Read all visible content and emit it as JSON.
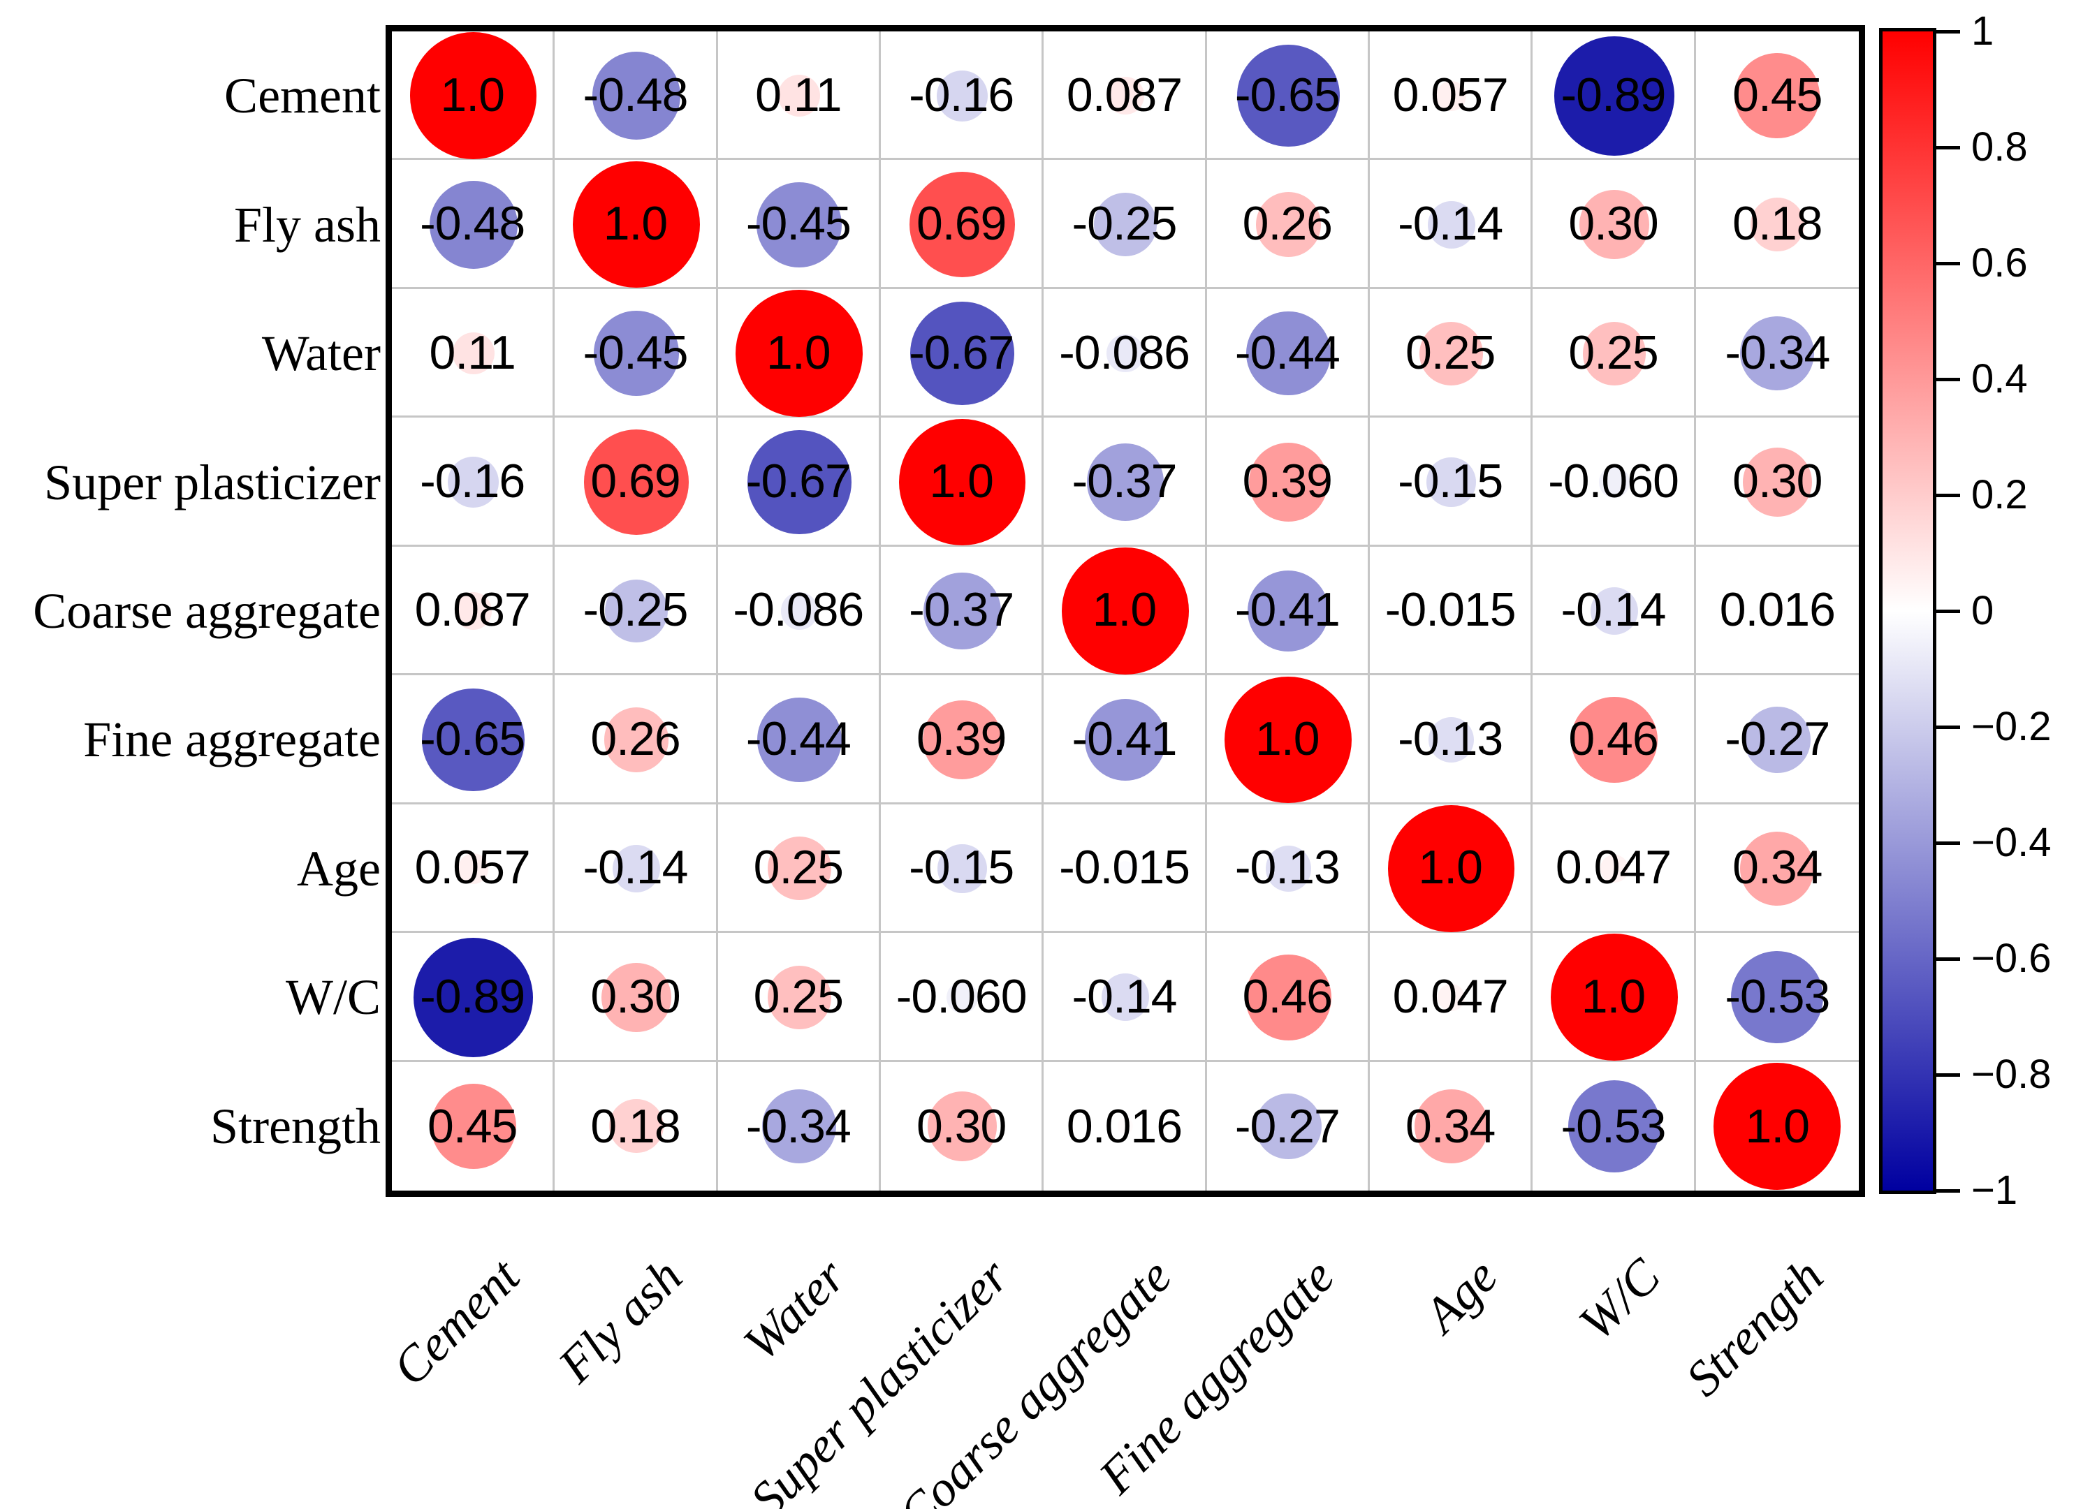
{
  "figure": {
    "background": "#ffffff"
  },
  "chart_data": {
    "type": "heatmap",
    "subtype": "correlation-bubble-matrix",
    "title": "",
    "variables": [
      "Cement",
      "Fly ash",
      "Water",
      "Super plasticizer",
      "Coarse aggregate",
      "Fine aggregate",
      "Age",
      "W/C",
      "Strength"
    ],
    "matrix": [
      [
        1.0,
        -0.48,
        0.11,
        -0.16,
        0.087,
        -0.65,
        0.057,
        -0.89,
        0.45
      ],
      [
        -0.48,
        1.0,
        -0.45,
        0.69,
        -0.25,
        0.26,
        -0.14,
        0.3,
        0.18
      ],
      [
        0.11,
        -0.45,
        1.0,
        -0.67,
        -0.086,
        -0.44,
        0.25,
        0.25,
        -0.34
      ],
      [
        -0.16,
        0.69,
        -0.67,
        1.0,
        -0.37,
        0.39,
        -0.15,
        -0.06,
        0.3
      ],
      [
        0.087,
        -0.25,
        -0.086,
        -0.37,
        1.0,
        -0.41,
        -0.015,
        -0.14,
        0.016
      ],
      [
        -0.65,
        0.26,
        -0.44,
        0.39,
        -0.41,
        1.0,
        -0.13,
        0.46,
        -0.27
      ],
      [
        0.057,
        -0.14,
        0.25,
        -0.15,
        -0.015,
        -0.13,
        1.0,
        0.047,
        0.34
      ],
      [
        -0.89,
        0.3,
        0.25,
        -0.06,
        -0.14,
        0.46,
        0.047,
        1.0,
        -0.53
      ],
      [
        0.45,
        0.18,
        -0.34,
        0.3,
        0.016,
        -0.27,
        0.34,
        -0.53,
        1.0
      ]
    ],
    "cell_labels": [
      [
        "1.0",
        "-0.48",
        "0.11",
        "-0.16",
        "0.087",
        "-0.65",
        "0.057",
        "-0.89",
        "0.45"
      ],
      [
        "-0.48",
        "1.0",
        "-0.45",
        "0.69",
        "-0.25",
        "0.26",
        "-0.14",
        "0.30",
        "0.18"
      ],
      [
        "0.11",
        "-0.45",
        "1.0",
        "-0.67",
        "-0.086",
        "-0.44",
        "0.25",
        "0.25",
        "-0.34"
      ],
      [
        "-0.16",
        "0.69",
        "-0.67",
        "1.0",
        "-0.37",
        "0.39",
        "-0.15",
        "-0.060",
        "0.30"
      ],
      [
        "0.087",
        "-0.25",
        "-0.086",
        "-0.37",
        "1.0",
        "-0.41",
        "-0.015",
        "-0.14",
        "0.016"
      ],
      [
        "-0.65",
        "0.26",
        "-0.44",
        "0.39",
        "-0.41",
        "1.0",
        "-0.13",
        "0.46",
        "-0.27"
      ],
      [
        "0.057",
        "-0.14",
        "0.25",
        "-0.15",
        "-0.015",
        "-0.13",
        "1.0",
        "0.047",
        "0.34"
      ],
      [
        "-0.89",
        "0.30",
        "0.25",
        "-0.060",
        "-0.14",
        "0.46",
        "0.047",
        "1.0",
        "-0.53"
      ],
      [
        "0.45",
        "0.18",
        "-0.34",
        "0.30",
        "0.016",
        "-0.27",
        "0.34",
        "-0.53",
        "1.0"
      ]
    ],
    "colormap": {
      "positive_end": "#ff0000",
      "zero": "#ffffff",
      "negative_end": "#0000a0"
    },
    "grid": {
      "line_color": "#c6c6c6",
      "border_color": "#000000",
      "grid_on": true
    },
    "bubble_size_rule": "diameter proportional to sqrt(abs(r))",
    "colorbar": {
      "position": "right",
      "min": -1,
      "max": 1,
      "tick_values": [
        1,
        0.8,
        0.6,
        0.4,
        0.2,
        0,
        -0.2,
        -0.4,
        -0.6,
        -0.8,
        -1
      ],
      "tick_labels": [
        "1",
        "0.8",
        "0.6",
        "0.4",
        "0.2",
        "0",
        "−0.2",
        "−0.4",
        "−0.6",
        "−0.8",
        "−1"
      ]
    },
    "xlabel": "",
    "ylabel": "",
    "legend_position": "none",
    "x_tick_rotation_deg": 45
  }
}
